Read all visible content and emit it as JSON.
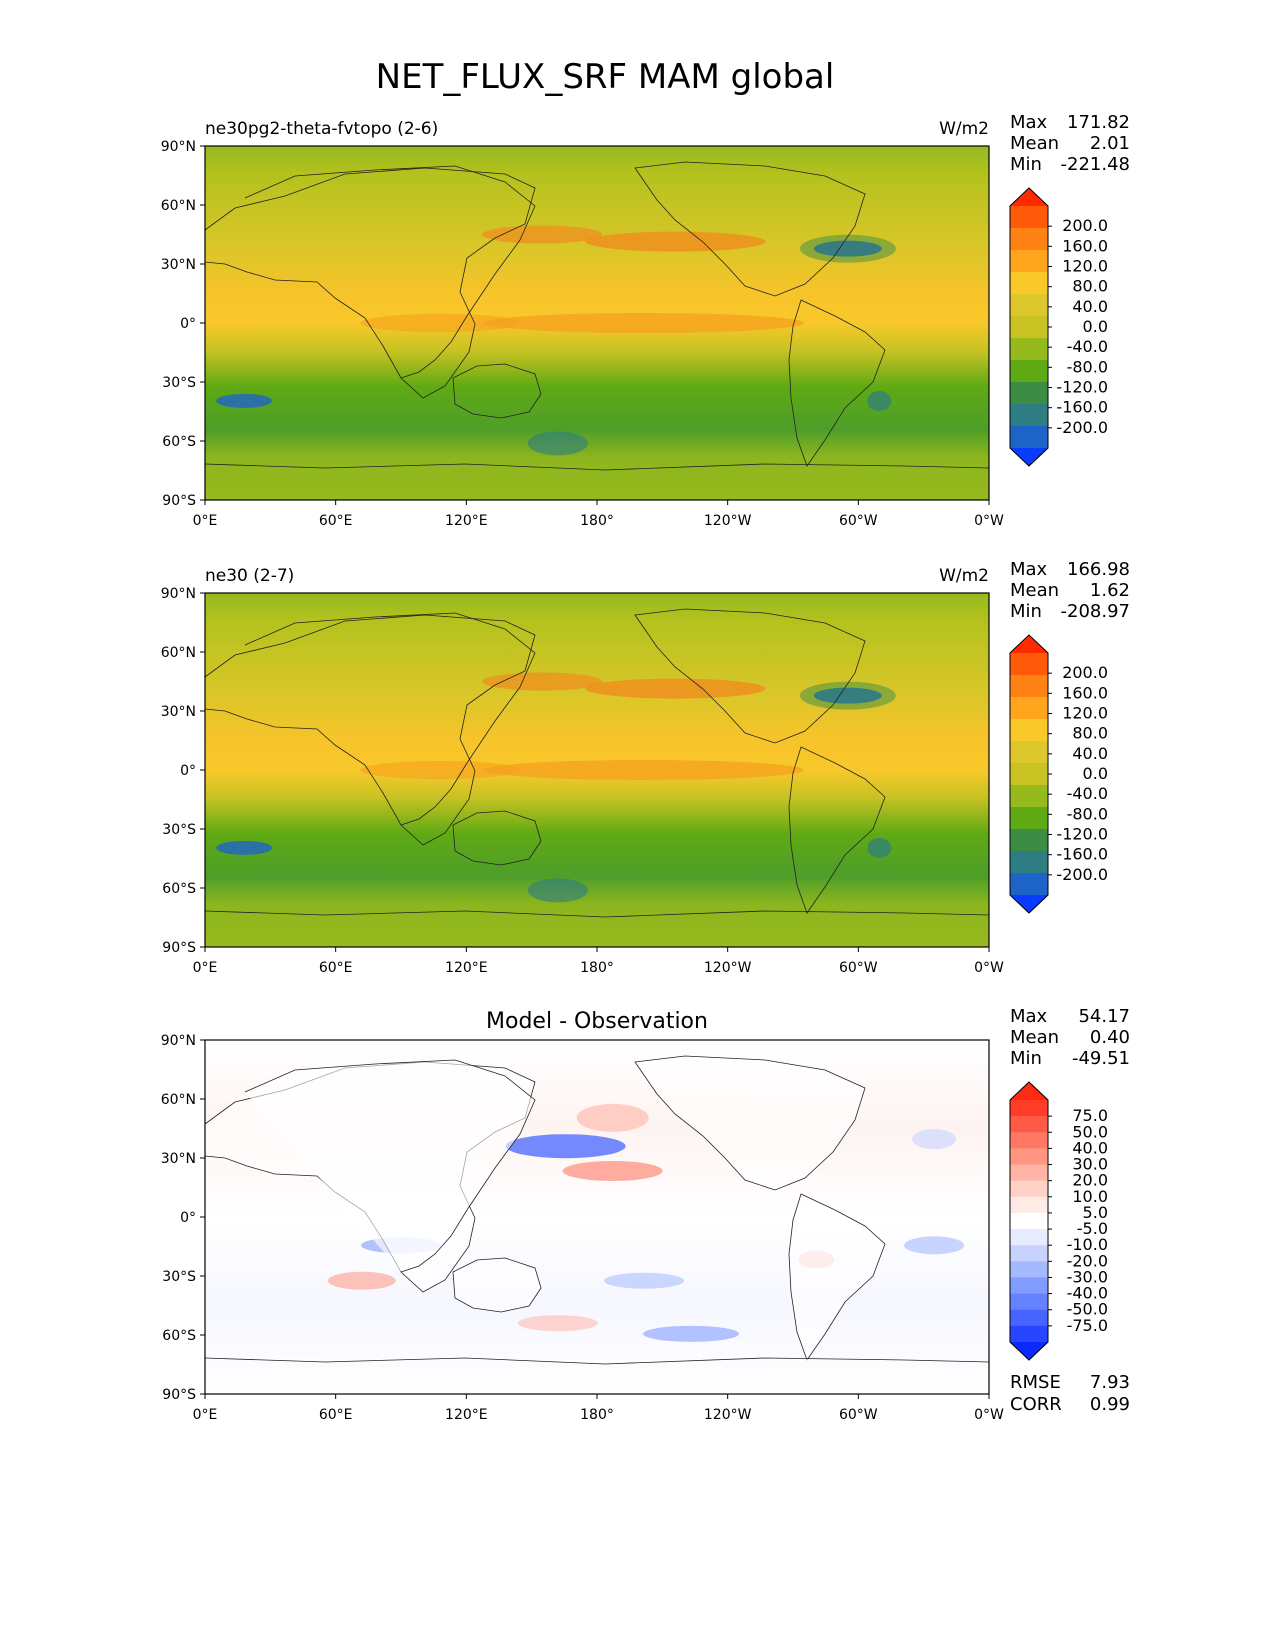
{
  "figure": {
    "title": "NET_FLUX_SRF MAM global"
  },
  "axes": {
    "lat_ticks": [
      "90°N",
      "60°N",
      "30°N",
      "0°",
      "30°S",
      "60°S",
      "90°S"
    ],
    "lon_ticks": [
      "0°E",
      "60°E",
      "120°E",
      "180°",
      "120°W",
      "60°W",
      "0°W"
    ]
  },
  "panels": [
    {
      "id": "test",
      "left_label": "ne30pg2-theta-fvtopo (2-6)",
      "center_title": "",
      "units": "W/m2",
      "stats": {
        "max_label": "Max",
        "max_value": "171.82",
        "mean_label": "Mean",
        "mean_value": "2.01",
        "min_label": "Min",
        "min_value": "-221.48"
      },
      "colorbar": {
        "labels": [
          "200.0",
          "160.0",
          "120.0",
          "80.0",
          "40.0",
          "0.0",
          "-40.0",
          "-80.0",
          "-120.0",
          "-160.0",
          "-200.0"
        ],
        "colors": [
          "#ff2a00",
          "#ff5a0a",
          "#ff8214",
          "#ffa51e",
          "#fac828",
          "#dcc82d",
          "#c8c223",
          "#96b91e",
          "#5faa14",
          "#3c8c46",
          "#2d7d82",
          "#1e64c8",
          "#0a3cff"
        ]
      }
    },
    {
      "id": "reference",
      "left_label": "ne30 (2-7)",
      "center_title": "",
      "units": "W/m2",
      "stats": {
        "max_label": "Max",
        "max_value": "166.98",
        "mean_label": "Mean",
        "mean_value": "1.62",
        "min_label": "Min",
        "min_value": "-208.97"
      },
      "colorbar": {
        "labels": [
          "200.0",
          "160.0",
          "120.0",
          "80.0",
          "40.0",
          "0.0",
          "-40.0",
          "-80.0",
          "-120.0",
          "-160.0",
          "-200.0"
        ],
        "colors": [
          "#ff2a00",
          "#ff5a0a",
          "#ff8214",
          "#ffa51e",
          "#fac828",
          "#dcc82d",
          "#c8c223",
          "#96b91e",
          "#5faa14",
          "#3c8c46",
          "#2d7d82",
          "#1e64c8",
          "#0a3cff"
        ]
      }
    },
    {
      "id": "difference",
      "left_label": "",
      "center_title": "Model - Observation",
      "units": "",
      "stats": {
        "max_label": "Max",
        "max_value": "54.17",
        "mean_label": "Mean",
        "mean_value": "0.40",
        "min_label": "Min",
        "min_value": "-49.51"
      },
      "extra_stats": {
        "rmse_label": "RMSE",
        "rmse_value": "7.93",
        "corr_label": "CORR",
        "corr_value": "0.99"
      },
      "colorbar": {
        "labels": [
          "75.0",
          "50.0",
          "40.0",
          "30.0",
          "20.0",
          "10.0",
          "5.0",
          "-5.0",
          "-10.0",
          "-20.0",
          "-30.0",
          "-40.0",
          "-50.0",
          "-75.0"
        ],
        "colors": [
          "#ff2a14",
          "#ff3c28",
          "#ff5a46",
          "#ff7864",
          "#ff9682",
          "#ffb4a5",
          "#ffd2c8",
          "#ffebe6",
          "#ffffff",
          "#e6ebff",
          "#c8d2ff",
          "#a5b9ff",
          "#829bff",
          "#6482ff",
          "#4664ff",
          "#2846ff",
          "#0a2aff"
        ]
      }
    }
  ]
}
